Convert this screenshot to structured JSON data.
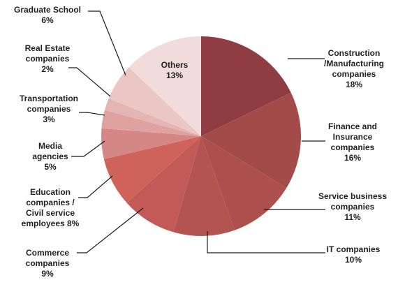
{
  "chart_data": {
    "type": "pie",
    "slices": [
      {
        "lines": [
          "Construction",
          "/Manufacturing",
          "companies",
          "18%"
        ],
        "value": 18,
        "color": "#8f3d42"
      },
      {
        "lines": [
          "Finance and",
          "Insurance",
          "companies",
          "16%"
        ],
        "value": 16,
        "color": "#a34b49"
      },
      {
        "lines": [
          "Service business",
          "companies",
          "11%"
        ],
        "value": 11,
        "color": "#ac4f4d"
      },
      {
        "lines": [
          "IT companies",
          "10%"
        ],
        "value": 10,
        "color": "#b45451"
      },
      {
        "lines": [
          "Commerce",
          "companies",
          "9%"
        ],
        "value": 9,
        "color": "#c25a57"
      },
      {
        "lines": [
          "Education",
          "companies /",
          "Civil service",
          "employees 8%"
        ],
        "value": 8,
        "color": "#d0625c"
      },
      {
        "lines": [
          "Media",
          "agencies",
          "5%"
        ],
        "value": 5,
        "color": "#d48784"
      },
      {
        "lines": [
          "Transportation",
          "companies",
          "3%"
        ],
        "value": 3,
        "color": "#dea2a1"
      },
      {
        "lines": [
          "Real Estate",
          "companies",
          "2%"
        ],
        "value": 2,
        "color": "#e5b5b4"
      },
      {
        "lines": [
          "Graduate School",
          "6%"
        ],
        "value": 6,
        "color": "#ebc6c5"
      },
      {
        "lines": [
          "Others",
          "13%"
        ],
        "value": 13,
        "color": "#f1dcdb"
      }
    ]
  }
}
